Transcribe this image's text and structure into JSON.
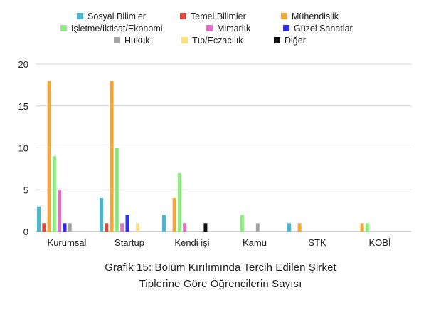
{
  "chart_data": {
    "type": "bar",
    "categories": [
      "Kurumsal",
      "Startup",
      "Kendi işi",
      "Kamu",
      "STK",
      "KOBİ"
    ],
    "ylim": [
      0,
      20
    ],
    "yticks": [
      0,
      5,
      10,
      15,
      20
    ],
    "grid": true,
    "legend_position": "top",
    "series": [
      {
        "name": "Sosyal Bilimler",
        "color": "#55b3c9",
        "values": [
          3,
          4,
          2,
          0,
          1,
          0
        ]
      },
      {
        "name": "Temel Bilimler",
        "color": "#dc4a3f",
        "values": [
          1,
          1,
          0,
          0,
          0,
          0
        ]
      },
      {
        "name": "Mühendislik",
        "color": "#f2a73a",
        "values": [
          18,
          18,
          4,
          0,
          1,
          1
        ]
      },
      {
        "name": "İşletme/İktisat/Ekonomi",
        "color": "#8fe882",
        "values": [
          9,
          10,
          7,
          2,
          0,
          1
        ]
      },
      {
        "name": "Mimarlık",
        "color": "#e36fc8",
        "values": [
          5,
          1,
          1,
          0,
          0,
          0
        ]
      },
      {
        "name": "Güzel Sanatlar",
        "color": "#3030e0",
        "values": [
          1,
          2,
          0,
          0,
          0,
          0
        ]
      },
      {
        "name": "Hukuk",
        "color": "#a6a6a6",
        "values": [
          1,
          0,
          0,
          1,
          0,
          0
        ]
      },
      {
        "name": "Tıp/Eczacılık",
        "color": "#fbe07a",
        "values": [
          0,
          1,
          0,
          0,
          0,
          0
        ]
      },
      {
        "name": "Diğer",
        "color": "#111111",
        "values": [
          0,
          0,
          1,
          0,
          0,
          0
        ]
      }
    ],
    "caption": [
      "Grafik 15: Bölüm Kırılımında Tercih Edilen Şirket",
      "Tiplerine Göre Öğrencilerin Sayısı"
    ]
  }
}
